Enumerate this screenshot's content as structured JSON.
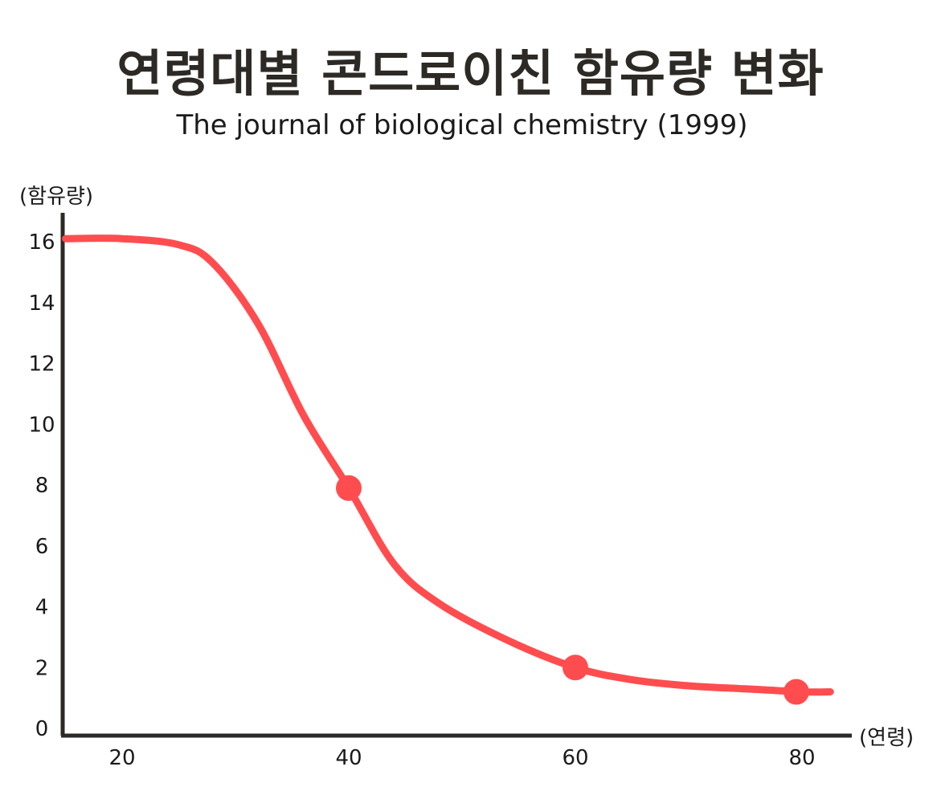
{
  "chart_data": {
    "type": "line",
    "title": "연령대별 콘드로이친 함유량 변화",
    "subtitle": "The journal of biological chemistry (1999)",
    "xlabel": "(연령)",
    "ylabel": "(함유량)",
    "x_ticks": [
      20,
      40,
      60,
      80
    ],
    "y_ticks": [
      0,
      2,
      4,
      6,
      8,
      10,
      12,
      14,
      16
    ],
    "xlim": [
      15,
      83
    ],
    "ylim": [
      0,
      16
    ],
    "series": [
      {
        "name": "콘드로이친 함유량",
        "color": "#ff4d4f",
        "x": [
          15,
          20,
          25,
          28,
          32,
          36,
          40,
          44,
          48,
          54,
          60,
          65,
          70,
          75,
          80,
          82.5
        ],
        "values": [
          16.1,
          16.1,
          15.9,
          15.3,
          13.3,
          10.3,
          7.9,
          5.4,
          4.1,
          2.9,
          2.0,
          1.6,
          1.4,
          1.3,
          1.2,
          1.2
        ]
      }
    ],
    "markers": [
      {
        "x": 40,
        "y": 7.9
      },
      {
        "x": 60,
        "y": 2.0
      },
      {
        "x": 79.5,
        "y": 1.2
      }
    ]
  },
  "colors": {
    "axis": "#2d2a26",
    "line": "#ff4d4f",
    "title": "#2d2a26"
  }
}
